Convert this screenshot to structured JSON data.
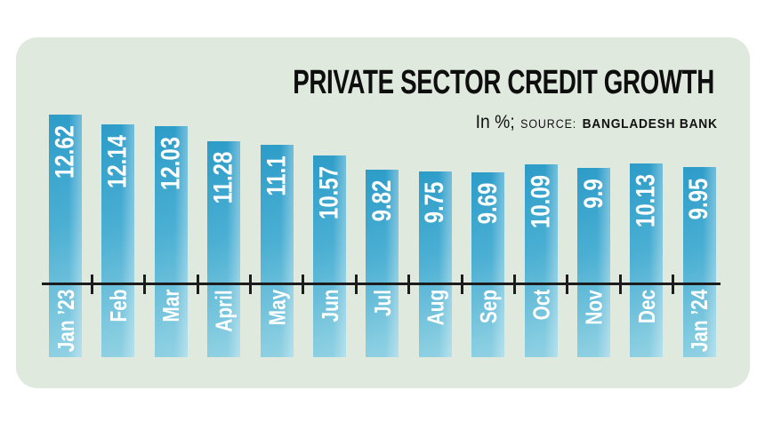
{
  "header": {
    "title": "PRIVATE SECTOR CREDIT GROWTH",
    "unit_note": "In %;",
    "source_label": "SOURCE:",
    "source_name": "BANGLADESH BANK"
  },
  "chart_data": {
    "type": "bar",
    "title": "PRIVATE SECTOR CREDIT GROWTH",
    "subtitle": "In %; SOURCE: BANGLADESH BANK",
    "categories": [
      "Jan ’23",
      "Feb",
      "Mar",
      "April",
      "May",
      "Jun",
      "Jul",
      "Aug",
      "Sep",
      "Oct",
      "Nov",
      "Dec",
      "Jan ’24"
    ],
    "values": [
      12.62,
      12.14,
      12.03,
      11.28,
      11.1,
      10.57,
      9.82,
      9.75,
      9.69,
      10.09,
      9.9,
      10.13,
      9.95
    ],
    "ylabel": "In %",
    "value_labels_inside_bars": true,
    "category_labels_inside_bars": true,
    "legend": "none",
    "grid": "off",
    "colors": {
      "bar_dark": "#2c9cc8",
      "bar_light": "#93d2e4",
      "card_background": "#dfe9dd",
      "page_background": "#ffffff",
      "axis": "#1c1c1c",
      "bar_text": "#ffffff",
      "title_text": "#0e0e0e"
    }
  }
}
